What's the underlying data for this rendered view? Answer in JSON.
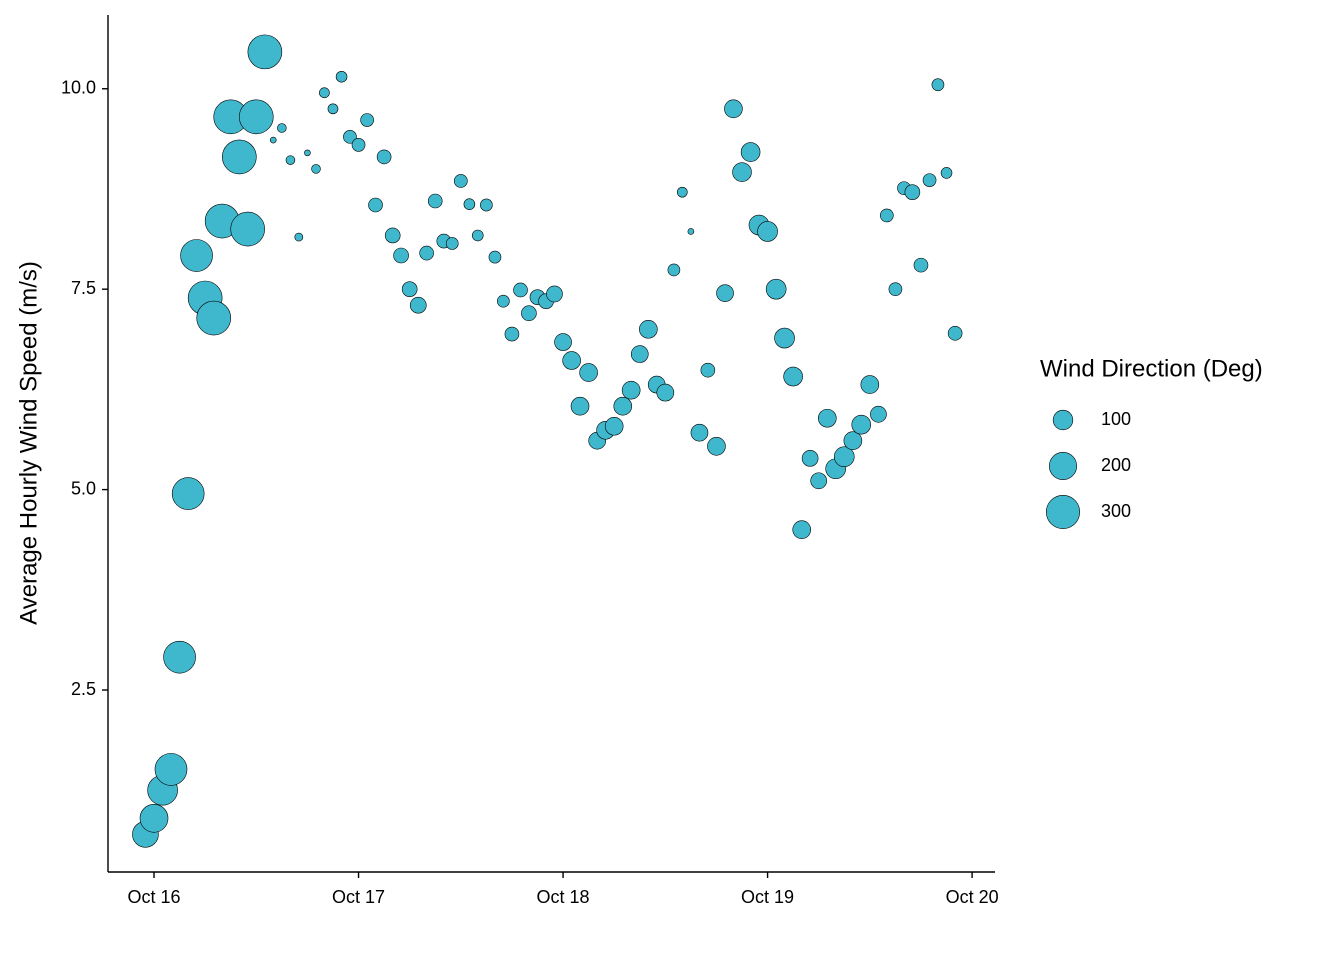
{
  "chart_data": {
    "type": "scatter",
    "ylabel": "Average Hourly Wind Speed (m/s)",
    "size_title": "Wind Direction (Deg)",
    "size_breaks": [
      100,
      200,
      300
    ],
    "size_lim": [
      0,
      330
    ],
    "color": "#3fb8cd",
    "xlim": [
      15.775,
      20.112
    ],
    "xticks": [
      {
        "value": 16,
        "label": "Oct 16"
      },
      {
        "value": 17,
        "label": "Oct 17"
      },
      {
        "value": 18,
        "label": "Oct 18"
      },
      {
        "value": 19,
        "label": "Oct 19"
      },
      {
        "value": 20,
        "label": "Oct 20"
      }
    ],
    "ylim": [
      0.23,
      10.92
    ],
    "yticks": [
      2.5,
      {
        "value": 5,
        "label": "5.0"
      },
      7.5,
      {
        "value": 10,
        "label": "10.0"
      }
    ],
    "x": [
      15.958,
      16,
      16.042,
      16.083,
      16.125,
      16.167,
      16.208,
      16.25,
      16.292,
      16.333,
      16.375,
      16.417,
      16.458,
      16.5,
      16.542,
      16.583,
      16.625,
      16.667,
      16.708,
      16.75,
      16.792,
      16.833,
      16.875,
      16.917,
      16.958,
      17,
      17.042,
      17.083,
      17.125,
      17.167,
      17.208,
      17.25,
      17.292,
      17.333,
      17.375,
      17.417,
      17.458,
      17.5,
      17.542,
      17.583,
      17.625,
      17.667,
      17.708,
      17.75,
      17.792,
      17.833,
      17.875,
      17.917,
      17.958,
      18,
      18.042,
      18.083,
      18.125,
      18.167,
      18.208,
      18.25,
      18.292,
      18.333,
      18.375,
      18.417,
      18.458,
      18.5,
      18.542,
      18.583,
      18.625,
      18.667,
      18.708,
      18.75,
      18.792,
      18.833,
      18.875,
      18.917,
      18.958,
      19,
      19.042,
      19.083,
      19.125,
      19.167,
      19.208,
      19.25,
      19.292,
      19.333,
      19.375,
      19.417,
      19.458,
      19.5,
      19.542,
      19.583,
      19.625,
      19.667,
      19.708,
      19.75,
      19.792,
      19.833,
      19.875,
      19.917
    ],
    "values": [
      0.7,
      0.9,
      1.25,
      1.51,
      2.91,
      4.95,
      7.92,
      7.39,
      7.14,
      8.35,
      9.65,
      9.15,
      8.25,
      9.65,
      10.46,
      9.36,
      9.51,
      9.11,
      8.15,
      9.2,
      9.0,
      9.95,
      9.75,
      10.15,
      9.4,
      9.3,
      9.61,
      8.55,
      9.15,
      8.17,
      7.92,
      7.5,
      7.3,
      7.95,
      8.6,
      8.1,
      8.07,
      8.85,
      8.56,
      8.17,
      8.55,
      7.9,
      7.35,
      6.94,
      7.49,
      7.2,
      7.4,
      7.35,
      7.44,
      6.84,
      6.61,
      6.04,
      6.46,
      5.61,
      5.74,
      5.79,
      6.04,
      6.24,
      6.69,
      7.0,
      6.31,
      6.21,
      7.74,
      8.71,
      8.22,
      5.71,
      6.49,
      5.54,
      7.45,
      9.75,
      8.96,
      9.21,
      8.3,
      8.22,
      7.5,
      6.89,
      6.41,
      4.5,
      5.39,
      5.11,
      5.89,
      5.26,
      5.41,
      5.61,
      5.81,
      6.31,
      5.94,
      8.42,
      7.5,
      8.76,
      8.71,
      7.8,
      8.86,
      10.05,
      8.95,
      6.95
    ],
    "sizes": [
      179,
      209,
      240,
      275,
      275,
      275,
      275,
      311,
      311,
      311,
      311,
      311,
      311,
      311,
      311,
      3,
      15,
      15,
      11,
      3,
      15,
      21,
      21,
      26,
      40,
      40,
      40,
      47,
      47,
      55,
      55,
      55,
      64,
      47,
      47,
      47,
      33,
      40,
      26,
      26,
      33,
      33,
      33,
      47,
      47,
      55,
      55,
      55,
      64,
      73,
      82,
      82,
      82,
      73,
      82,
      82,
      82,
      82,
      73,
      82,
      73,
      73,
      33,
      21,
      3,
      73,
      47,
      82,
      73,
      82,
      92,
      92,
      103,
      103,
      103,
      103,
      92,
      82,
      64,
      64,
      82,
      103,
      103,
      82,
      92,
      82,
      64,
      40,
      40,
      40,
      55,
      47,
      40,
      33,
      26,
      47
    ]
  }
}
